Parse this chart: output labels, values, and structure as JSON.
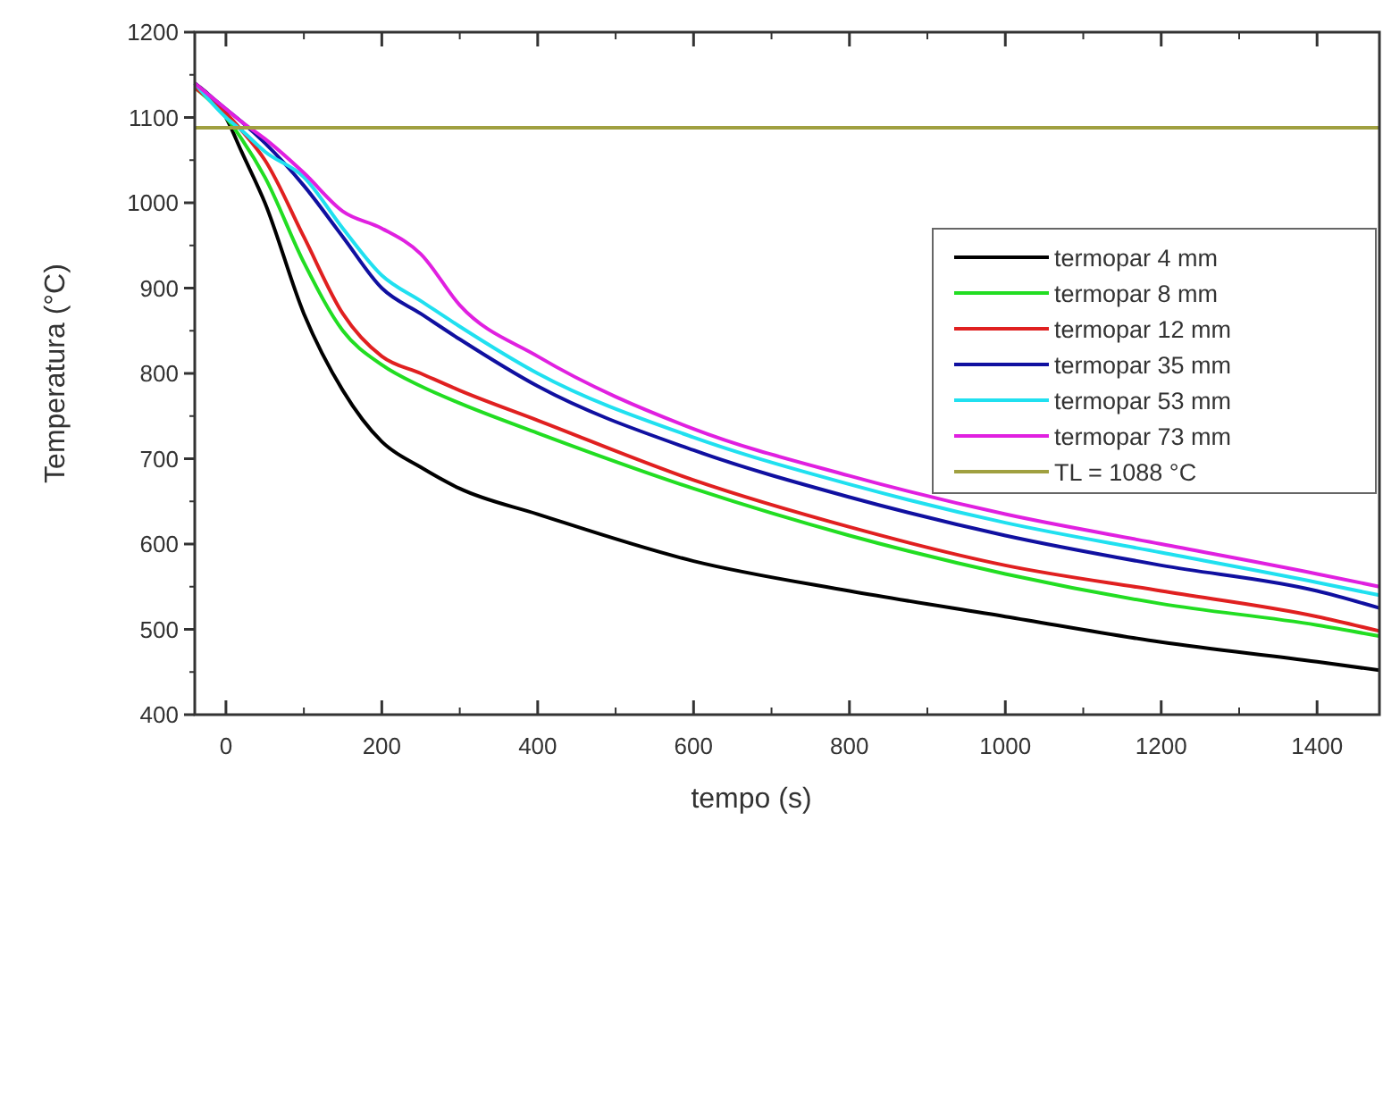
{
  "chart_data": {
    "type": "line",
    "xlabel": "tempo (s)",
    "ylabel": "Temperatura (°C)",
    "xlim": [
      -40,
      1480
    ],
    "ylim": [
      400,
      1200
    ],
    "xticks": [
      0,
      200,
      400,
      600,
      800,
      1000,
      1200,
      1400
    ],
    "yticks": [
      400,
      500,
      600,
      700,
      800,
      900,
      1000,
      1100,
      1200
    ],
    "grid": false,
    "legend": "right",
    "marker": "none",
    "line_style": "solid",
    "x": [
      -40,
      0,
      20,
      50,
      100,
      150,
      200,
      250,
      300,
      400,
      600,
      800,
      1000,
      1200,
      1400,
      1480
    ],
    "series": [
      {
        "name": "termopar 4 mm",
        "color": "#000000",
        "values": [
          1140,
          1100,
          1060,
          1000,
          870,
          780,
          720,
          690,
          665,
          635,
          580,
          545,
          515,
          485,
          462,
          452
        ]
      },
      {
        "name": "termopar 8 mm",
        "color": "#22dd22",
        "values": [
          1135,
          1100,
          1075,
          1030,
          930,
          850,
          810,
          785,
          765,
          730,
          665,
          610,
          565,
          530,
          505,
          492
        ]
      },
      {
        "name": "termopar 12 mm",
        "color": "#e02020",
        "values": [
          1135,
          1105,
          1085,
          1050,
          960,
          870,
          820,
          800,
          780,
          745,
          675,
          620,
          575,
          545,
          515,
          498
        ]
      },
      {
        "name": "termopar 35 mm",
        "color": "#1010a0",
        "values": [
          1140,
          1110,
          1095,
          1070,
          1020,
          960,
          900,
          870,
          840,
          785,
          710,
          655,
          610,
          575,
          545,
          525
        ]
      },
      {
        "name": "termopar 53 mm",
        "color": "#20e0f0",
        "values": [
          1140,
          1100,
          1085,
          1060,
          1030,
          970,
          915,
          885,
          855,
          800,
          725,
          670,
          625,
          590,
          555,
          540
        ]
      },
      {
        "name": "termopar 73 mm",
        "color": "#e020e0",
        "values": [
          1140,
          1110,
          1095,
          1075,
          1035,
          990,
          970,
          940,
          880,
          820,
          735,
          680,
          635,
          600,
          565,
          550
        ]
      },
      {
        "name": "TL = 1088 °C",
        "color": "#a0a040",
        "x": [
          -40,
          1480
        ],
        "values": [
          1088,
          1088
        ]
      }
    ]
  }
}
